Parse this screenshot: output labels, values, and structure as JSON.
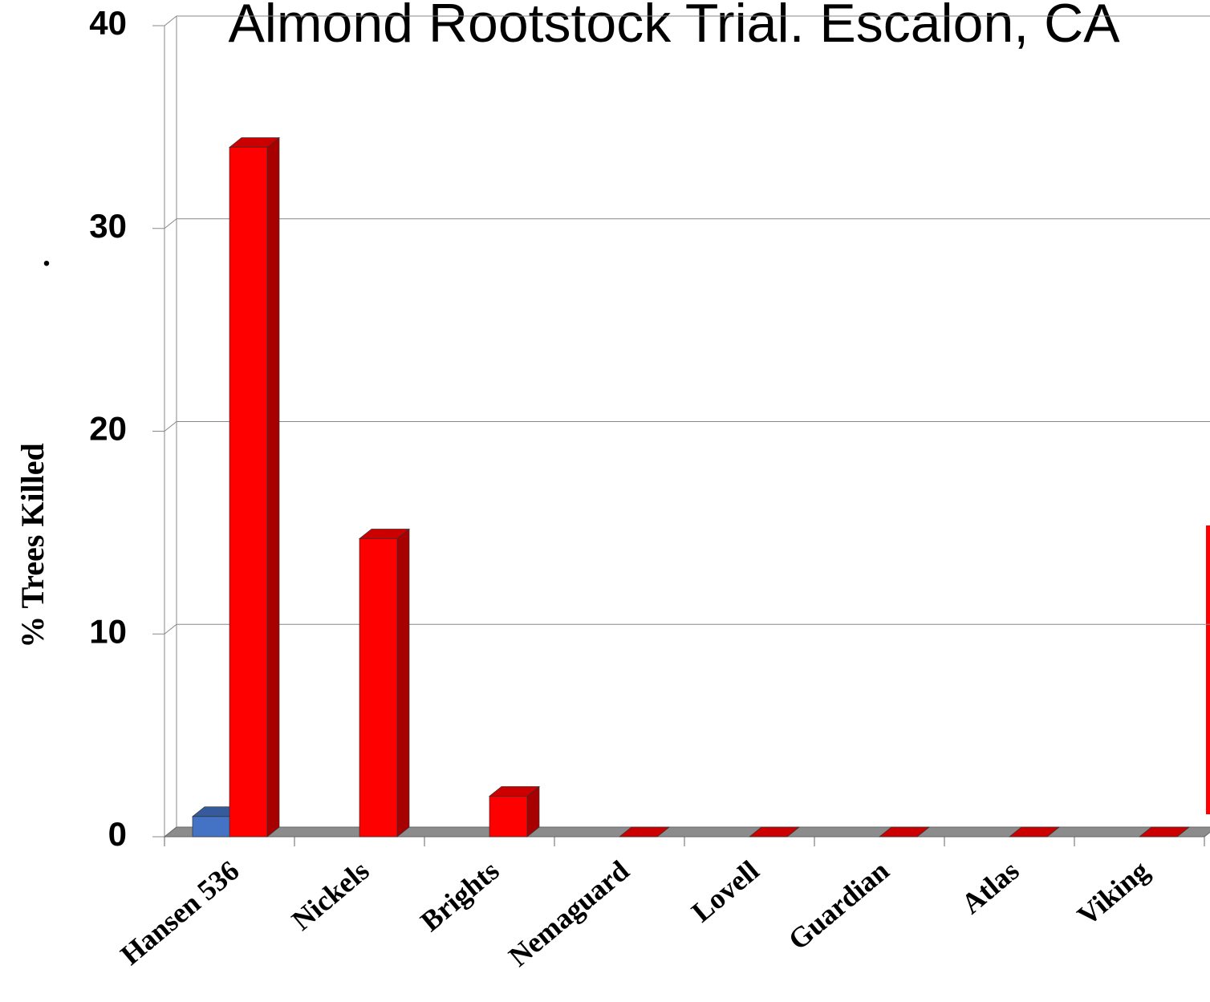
{
  "chart_data": {
    "type": "bar3d",
    "title": "Almond Rootstock Trial.  Escalon, CA",
    "y_label": "% Trees Killed",
    "annotation": ".",
    "categories": [
      "Hansen 536",
      "Nickels",
      "Brights",
      "Nemaguard",
      "Lovell",
      "Guardian",
      "Atlas",
      "Viking"
    ],
    "series": [
      {
        "color": "#4472c4",
        "values": [
          1,
          0,
          0,
          0,
          0,
          0,
          0,
          0
        ]
      },
      {
        "color": "#ff0000",
        "values": [
          34,
          14.7,
          2,
          0,
          0,
          0,
          0,
          0
        ]
      }
    ],
    "ylim": [
      0,
      40
    ],
    "yticks": [
      0,
      10,
      20,
      30,
      40
    ],
    "grid": true
  }
}
